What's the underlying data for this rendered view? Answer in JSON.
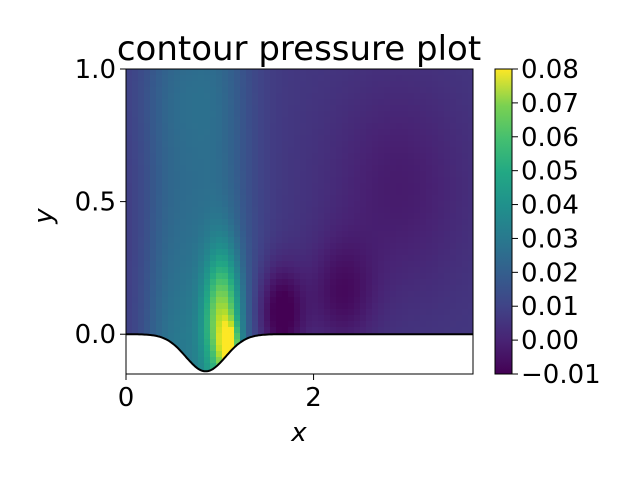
{
  "chart_data": {
    "type": "heatmap",
    "title": "contour pressure plot",
    "xlabel": "x",
    "ylabel": "y",
    "xlim": [
      0,
      3.7
    ],
    "ylim": [
      -0.15,
      1.0
    ],
    "xticks": [
      "0",
      "2"
    ],
    "xtick_values": [
      0,
      2
    ],
    "yticks": [
      "0.0",
      "0.5",
      "1.0"
    ],
    "ytick_values": [
      0.0,
      0.5,
      1.0
    ],
    "colormap": "viridis",
    "colorbar": {
      "min": -0.01,
      "max": 0.08,
      "ticks": [
        "−0.01",
        "0.00",
        "0.01",
        "0.02",
        "0.03",
        "0.04",
        "0.05",
        "0.06",
        "0.07",
        "0.08"
      ],
      "tick_values": [
        -0.01,
        0.0,
        0.01,
        0.02,
        0.03,
        0.04,
        0.05,
        0.06,
        0.07,
        0.08
      ]
    },
    "boundary": {
      "shape": "gaussian bump",
      "center_x": 0.85,
      "depth": -0.14,
      "width": 0.3
    },
    "field_features": [
      {
        "kind": "high-pressure",
        "x": 1.1,
        "y": -0.05,
        "value": 0.08
      },
      {
        "kind": "low-pressure",
        "x": 1.65,
        "y": 0.08,
        "value": -0.01
      }
    ],
    "grid": false
  }
}
